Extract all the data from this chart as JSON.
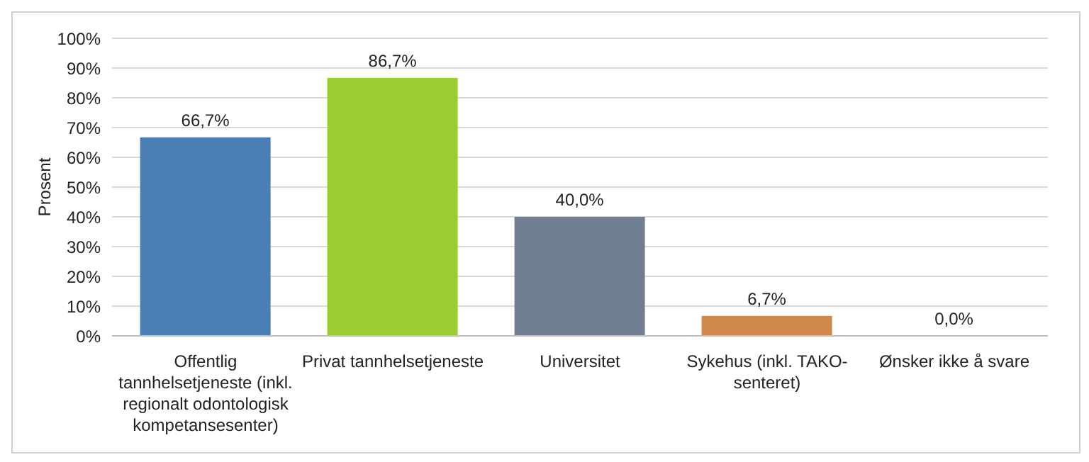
{
  "chart_data": {
    "type": "bar",
    "ylabel": "Prosent",
    "categories": [
      "Offentlig tannhelsetjeneste (inkl. regionalt odontologisk kompetansesenter)",
      "Privat tannhelsetjeneste",
      "Universitet",
      "Sykehus (inkl. TAKO-senteret)",
      "Ønsker ikke å svare"
    ],
    "values": [
      66.7,
      86.7,
      40.0,
      6.7,
      0.0
    ],
    "colors": [
      "#4a7fb6",
      "#9acd32",
      "#6f7f90",
      "#d0874a",
      "#a5a5a5"
    ],
    "value_labels": [
      "66,7%",
      "86,7%",
      "40,0%",
      "6,7%",
      "0,0%"
    ],
    "ylim": [
      0,
      100
    ],
    "yticks": [
      {
        "value": 0,
        "label": "0%"
      },
      {
        "value": 10,
        "label": "10%"
      },
      {
        "value": 20,
        "label": "20%"
      },
      {
        "value": 30,
        "label": "30%"
      },
      {
        "value": 40,
        "label": "40%"
      },
      {
        "value": 50,
        "label": "50%"
      },
      {
        "value": 60,
        "label": "60%"
      },
      {
        "value": 70,
        "label": "70%"
      },
      {
        "value": 80,
        "label": "80%"
      },
      {
        "value": 90,
        "label": "90%"
      },
      {
        "value": 100,
        "label": "100%"
      }
    ],
    "grid": "y"
  }
}
